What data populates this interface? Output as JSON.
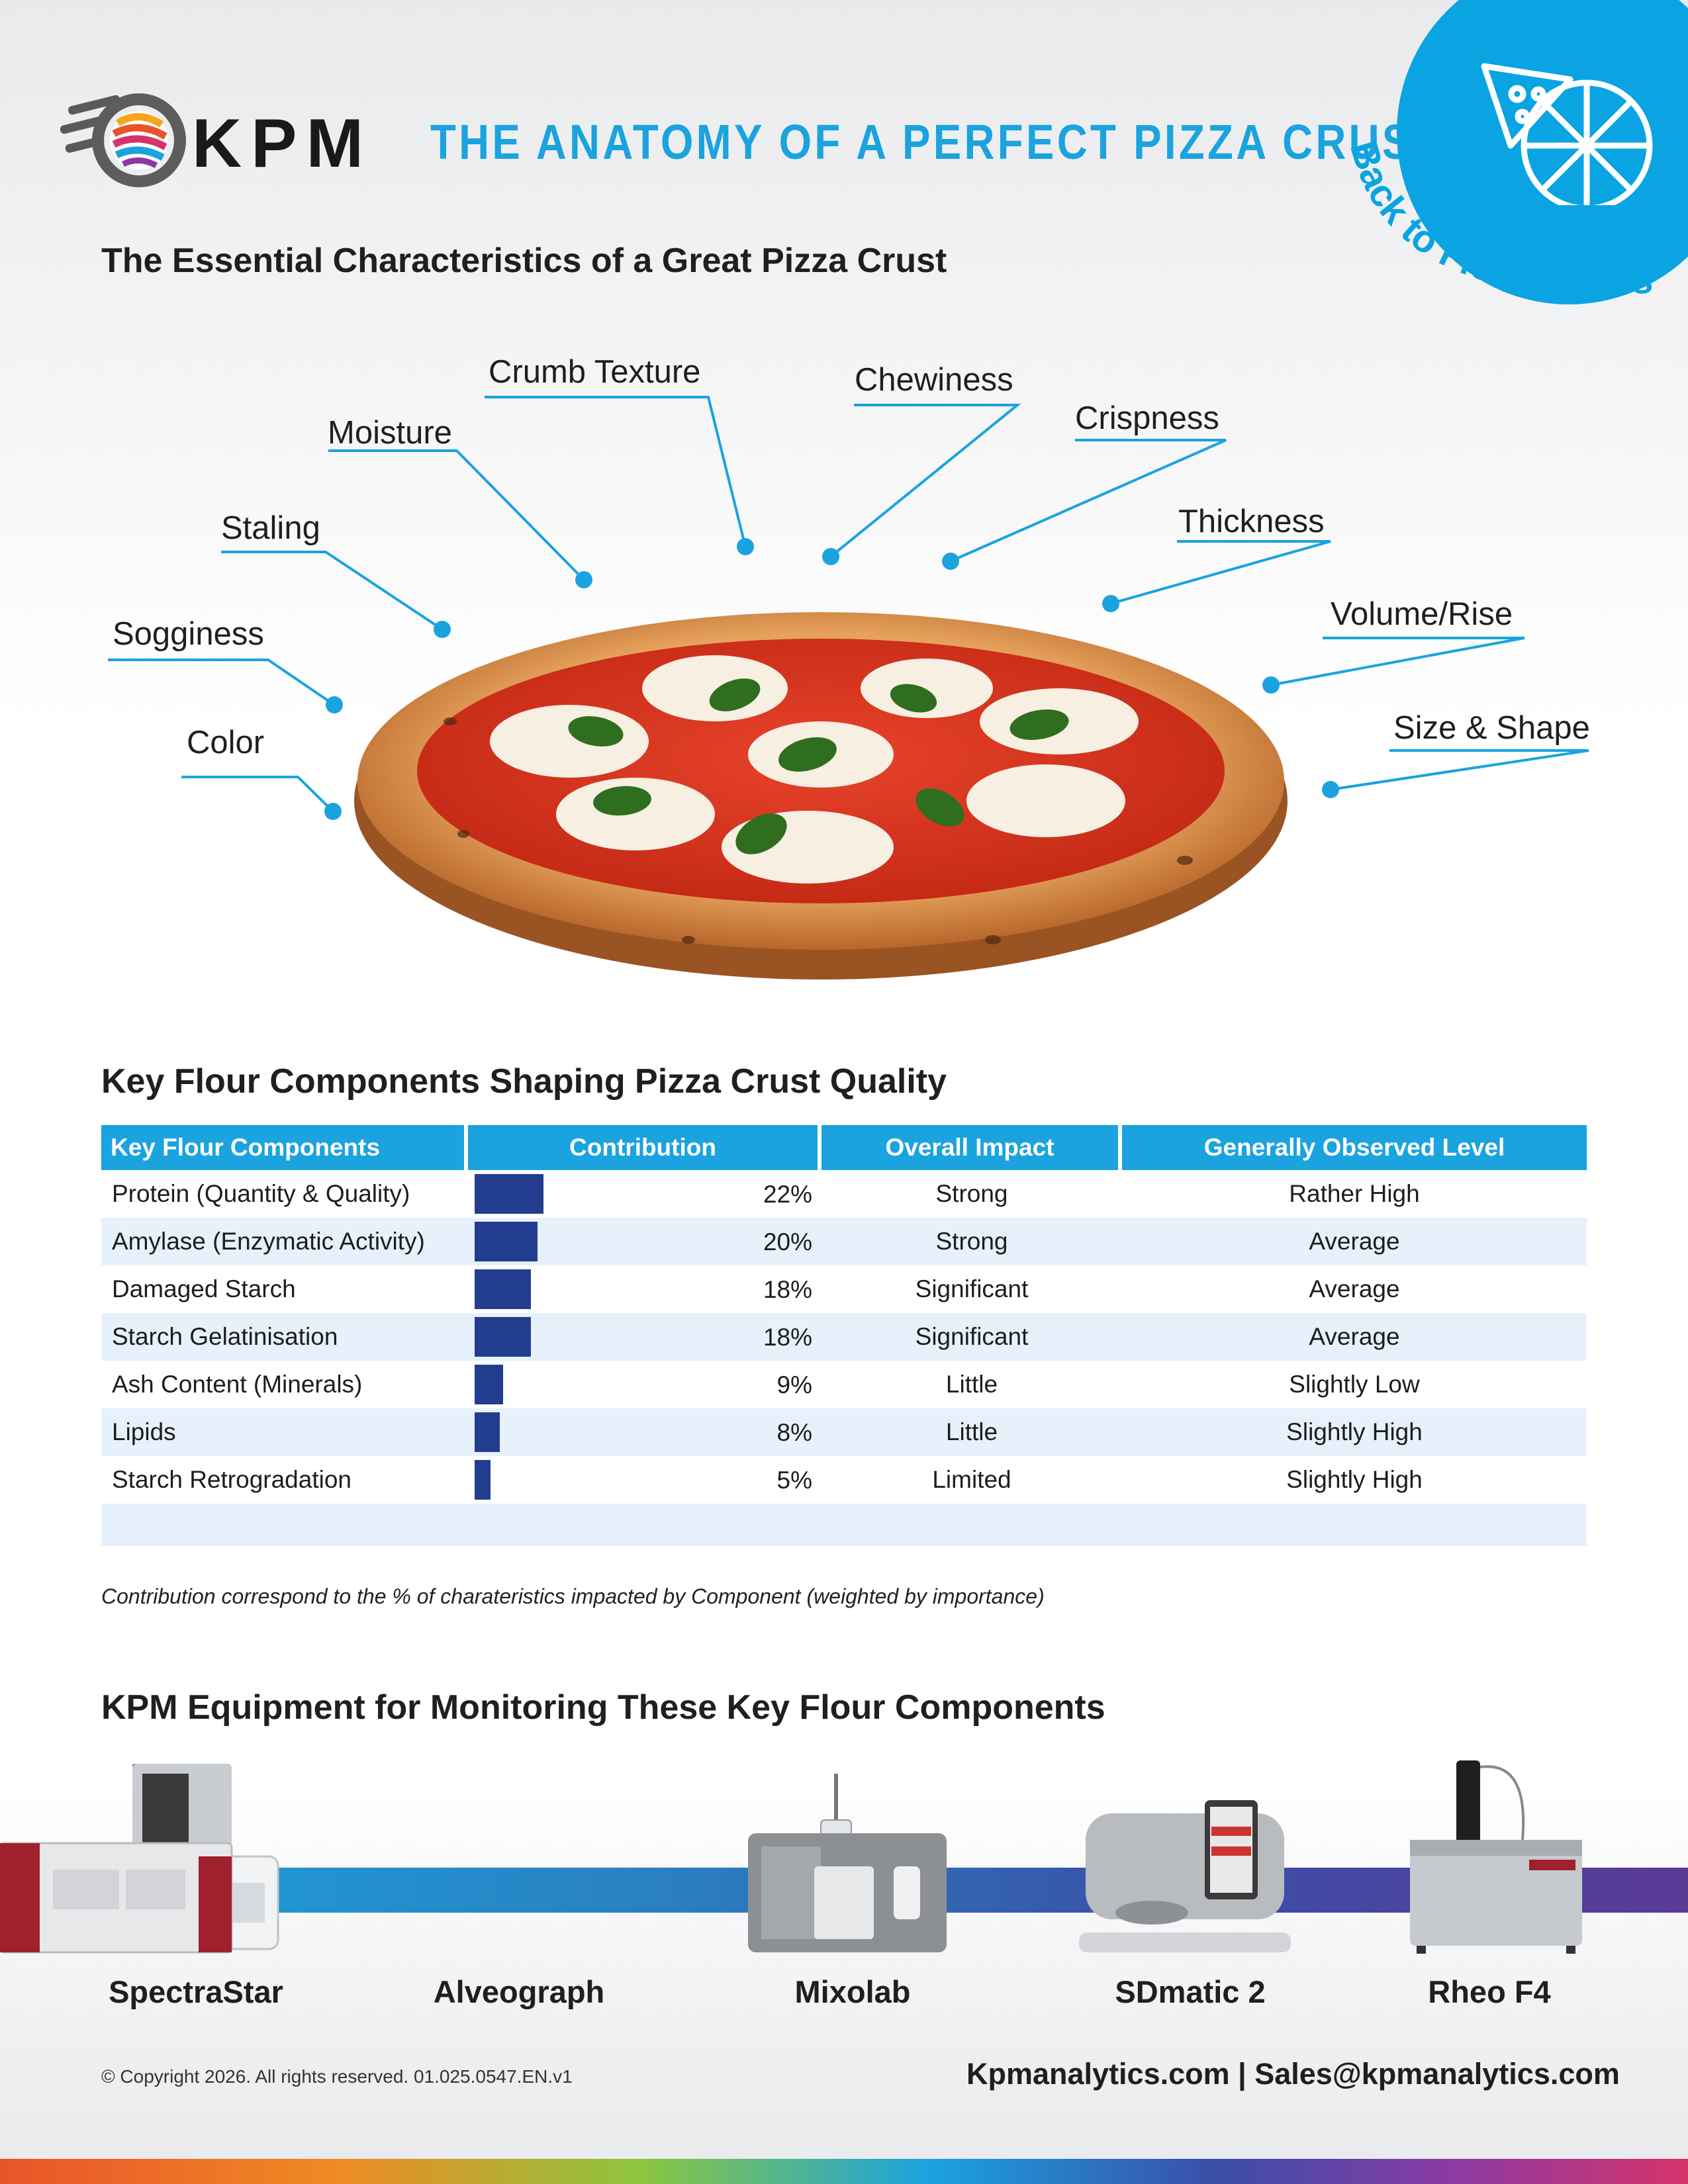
{
  "header": {
    "brand": "KPM",
    "title": "THE ANATOMY OF A PERFECT PIZZA CRUST",
    "badge_text": "Back to Flour Series"
  },
  "section1": {
    "heading": "The Essential Characteristics of a Great Pizza Crust",
    "characteristics": [
      "Color",
      "Sogginess",
      "Staling",
      "Moisture",
      "Crumb Texture",
      "Chewiness",
      "Crispness",
      "Thickness",
      "Volume/Rise",
      "Size & Shape"
    ]
  },
  "section2": {
    "heading": "Key Flour Components Shaping Pizza Crust Quality",
    "columns": [
      "Key Flour Components",
      "Contribution",
      "Overall Impact",
      "Generally Observed Level"
    ],
    "rows": [
      {
        "component": "Protein (Quantity & Quality)",
        "contribution": "22%",
        "value": 22,
        "impact": "Strong",
        "level": "Rather High"
      },
      {
        "component": "Amylase (Enzymatic Activity)",
        "contribution": "20%",
        "value": 20,
        "impact": "Strong",
        "level": "Average"
      },
      {
        "component": "Damaged Starch",
        "contribution": "18%",
        "value": 18,
        "impact": "Significant",
        "level": "Average"
      },
      {
        "component": "Starch Gelatinisation",
        "contribution": "18%",
        "value": 18,
        "impact": "Significant",
        "level": "Average"
      },
      {
        "component": "Ash Content (Minerals)",
        "contribution": "9%",
        "value": 9,
        "impact": "Little",
        "level": "Slightly Low"
      },
      {
        "component": "Lipids",
        "contribution": "8%",
        "value": 8,
        "impact": "Little",
        "level": "Slightly High"
      },
      {
        "component": "Starch Retrogradation",
        "contribution": "5%",
        "value": 5,
        "impact": "Limited",
        "level": "Slightly High"
      }
    ],
    "footnote": "Contribution correspond to the % of charateristics impacted by Component (weighted by importance)"
  },
  "section3": {
    "heading": "KPM Equipment for Monitoring These Key Flour Components",
    "equipment": [
      "SpectraStar",
      "Alveograph",
      "Mixolab",
      "SDmatic 2",
      "Rheo F4"
    ]
  },
  "footer": {
    "copyright": "© Copyright 2026. All rights reserved. 01.025.0547.EN.v1",
    "contact": "Kpmanalytics.com | Sales@kpmanalytics.com"
  },
  "colors": {
    "accent": "#1aa3df",
    "bar": "#233d8e",
    "row_alt": "#e6f1fb"
  }
}
